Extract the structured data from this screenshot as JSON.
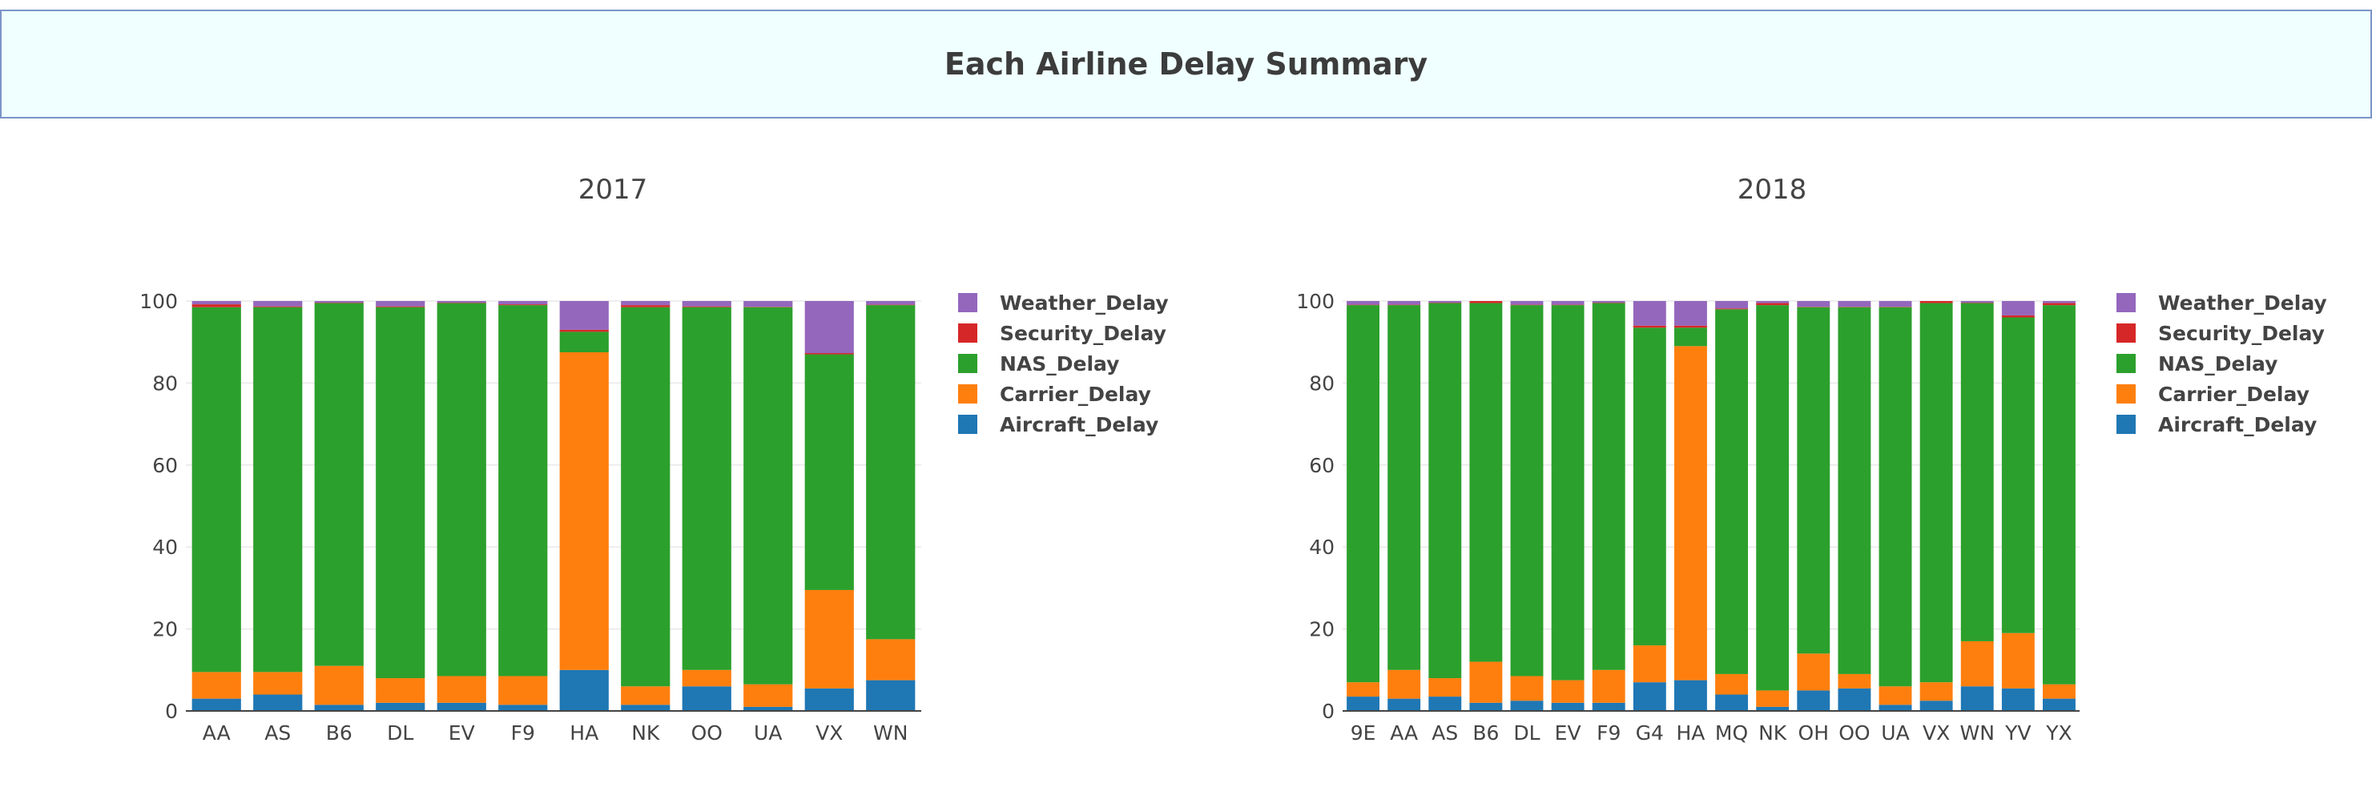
{
  "page": {
    "title": "Each Airline Delay Summary"
  },
  "colors": {
    "Aircraft_Delay": "#1f77b4",
    "Carrier_Delay": "#ff7f0e",
    "NAS_Delay": "#2ca02c",
    "Security_Delay": "#d62728",
    "Weather_Delay": "#9467bd"
  },
  "chart_data": [
    {
      "type": "bar",
      "stacked": true,
      "title": "2017",
      "ylim": [
        0,
        100
      ],
      "yticks": [
        0,
        20,
        40,
        60,
        80,
        100
      ],
      "grid": true,
      "legend_placement": "top-right",
      "categories": [
        "AA",
        "AS",
        "B6",
        "DL",
        "EV",
        "F9",
        "HA",
        "NK",
        "OO",
        "UA",
        "VX",
        "WN"
      ],
      "series": [
        {
          "name": "Aircraft_Delay",
          "values": [
            3,
            4,
            1.5,
            2,
            2,
            1.5,
            10,
            1.5,
            6,
            1,
            5.5,
            7.5
          ]
        },
        {
          "name": "Carrier_Delay",
          "values": [
            6.5,
            5.5,
            9.5,
            6,
            6.5,
            7,
            77.5,
            4.5,
            4,
            5.5,
            24,
            10
          ]
        },
        {
          "name": "NAS_Delay",
          "values": [
            89,
            89,
            88.5,
            90.5,
            91,
            90.5,
            5,
            92.5,
            88.5,
            92,
            57.5,
            81.5
          ]
        },
        {
          "name": "Security_Delay",
          "values": [
            0.7,
            0.2,
            0.1,
            0.2,
            0.1,
            0.2,
            0.5,
            0.5,
            0.2,
            0.1,
            0.3,
            0.1
          ]
        },
        {
          "name": "Weather_Delay",
          "values": [
            0.8,
            1.3,
            0.4,
            1.3,
            0.4,
            0.8,
            7,
            1,
            1.3,
            1.4,
            12.7,
            0.9
          ]
        }
      ]
    },
    {
      "type": "bar",
      "stacked": true,
      "title": "2018",
      "ylim": [
        0,
        100
      ],
      "yticks": [
        0,
        20,
        40,
        60,
        80,
        100
      ],
      "grid": true,
      "legend_placement": "top-right",
      "categories": [
        "9E",
        "AA",
        "AS",
        "B6",
        "DL",
        "EV",
        "F9",
        "G4",
        "HA",
        "MQ",
        "NK",
        "OH",
        "OO",
        "UA",
        "VX",
        "WN",
        "YV",
        "YX"
      ],
      "series": [
        {
          "name": "Aircraft_Delay",
          "values": [
            3.5,
            3,
            3.5,
            2,
            2.5,
            2,
            2,
            7,
            7.5,
            4,
            1,
            5,
            5.5,
            1.5,
            2.5,
            6,
            5.5,
            3
          ]
        },
        {
          "name": "Carrier_Delay",
          "values": [
            3.5,
            7,
            4.5,
            10,
            6,
            5.5,
            8,
            9,
            81.5,
            5,
            4,
            9,
            3.5,
            4.5,
            4.5,
            11,
            13.5,
            3.5
          ]
        },
        {
          "name": "NAS_Delay",
          "values": [
            92,
            89,
            91.5,
            87.5,
            90.5,
            91.5,
            89.5,
            77.5,
            4.5,
            89,
            94,
            84.5,
            89.5,
            92.5,
            92.5,
            82.5,
            77,
            92.5
          ]
        },
        {
          "name": "Security_Delay",
          "values": [
            0.1,
            0.1,
            0.1,
            0.5,
            0.1,
            0.1,
            0.1,
            0.5,
            0.5,
            0.2,
            0.5,
            0.1,
            0.1,
            0.1,
            0.5,
            0.1,
            0.5,
            0.5
          ]
        },
        {
          "name": "Weather_Delay",
          "values": [
            0.9,
            0.9,
            0.4,
            0,
            0.9,
            0.9,
            0.4,
            6,
            6,
            1.8,
            0.5,
            1.4,
            1.4,
            1.4,
            0,
            0.4,
            3.5,
            0.5
          ]
        }
      ]
    }
  ]
}
